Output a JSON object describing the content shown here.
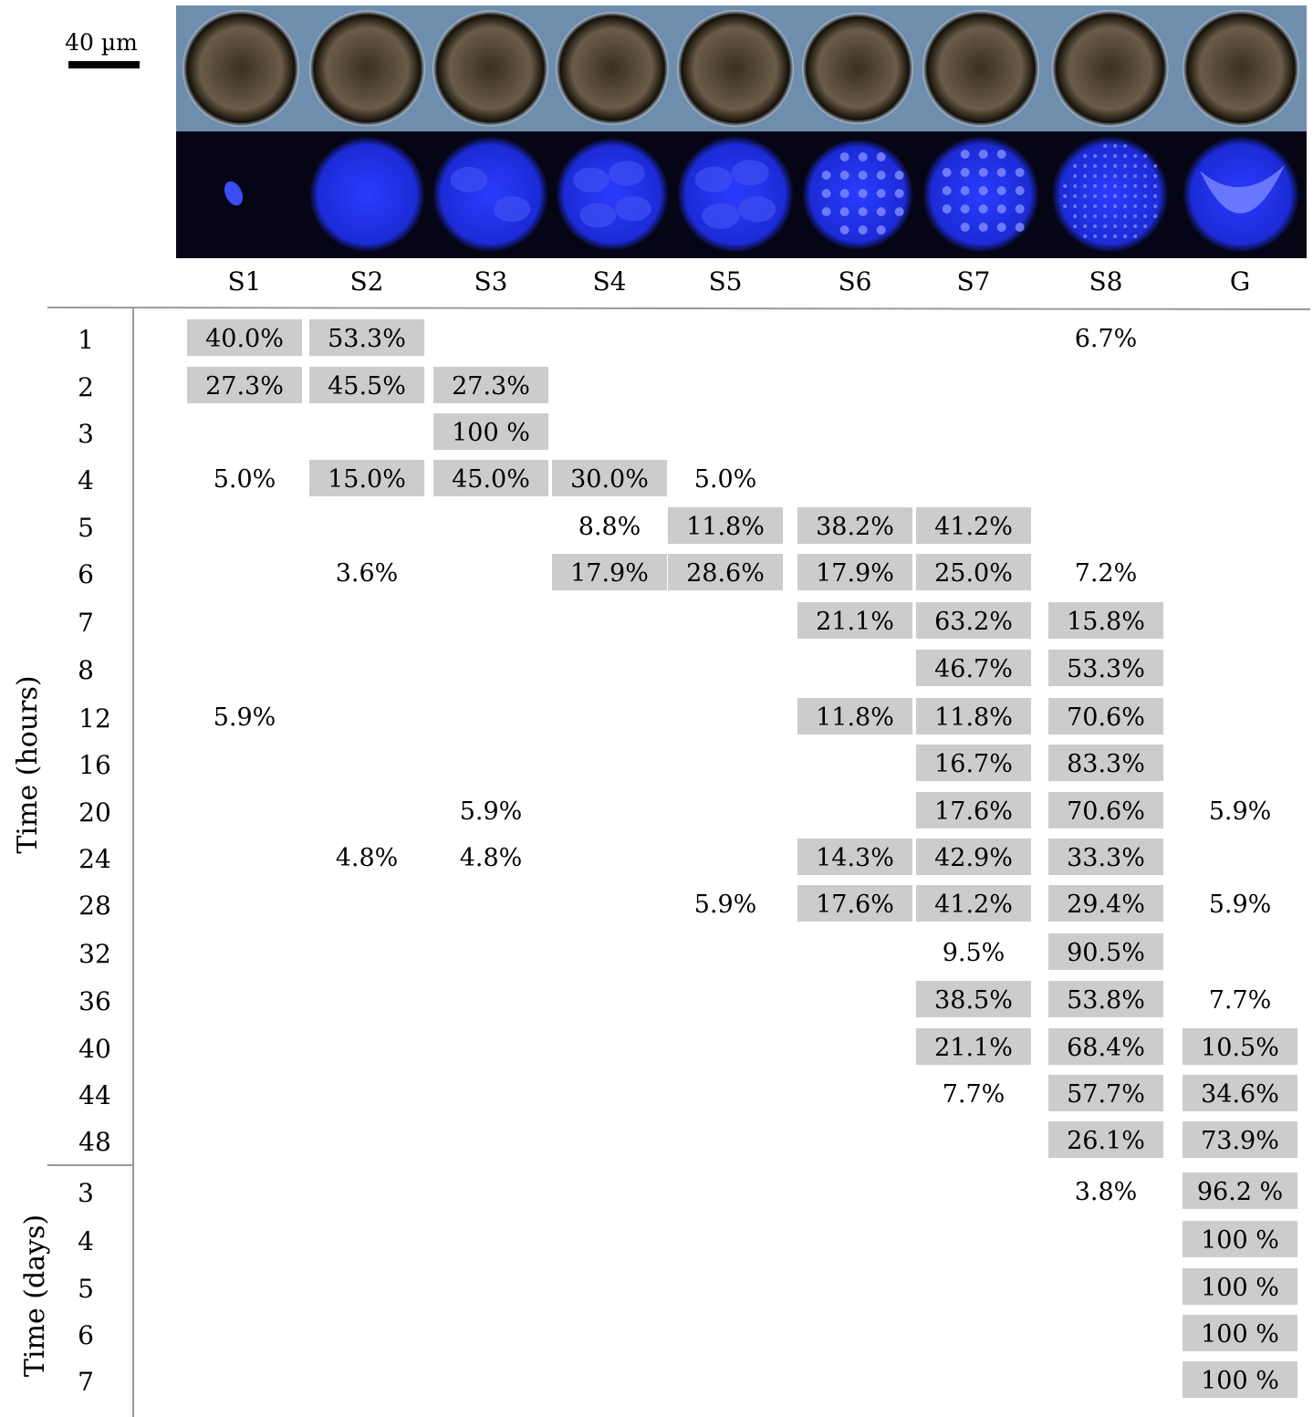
{
  "scale_bar": {
    "label": "40 µm"
  },
  "stage_images": [
    {
      "stage": "S1",
      "nuclei": "single"
    },
    {
      "stage": "S2",
      "nuclei": "diffuse"
    },
    {
      "stage": "S3",
      "nuclei": "few-large"
    },
    {
      "stage": "S4",
      "nuclei": "few-large"
    },
    {
      "stage": "S5",
      "nuclei": "few-large"
    },
    {
      "stage": "S6",
      "nuclei": "spots"
    },
    {
      "stage": "S7",
      "nuclei": "spots"
    },
    {
      "stage": "S8",
      "nuclei": "fine-spots"
    },
    {
      "stage": "G",
      "nuclei": "crescent"
    }
  ],
  "colors": {
    "cell_bright": "#6f8eae",
    "cell_dark": "#2e2820",
    "fluor_bg": "#050515",
    "fluor_cell": "#1c2bd6",
    "fluor_nuclei": "#5d6cff",
    "cell_highlight": "#b0c4db",
    "cell_mid": "#6a5c48",
    "cell_line": "#141008",
    "fluor_glow": "#2a3cff",
    "fluor_light": "#3b4cf0",
    "fluor_spot": "#7a88ff",
    "cell_core": "#3a3020",
    "box_fill": "#cccccc",
    "rule": "#999999"
  },
  "chart_data": {
    "type": "table",
    "columns": [
      "S1",
      "S2",
      "S3",
      "S4",
      "S5",
      "S6",
      "S7",
      "S8",
      "G"
    ],
    "groups": [
      {
        "label": "Time (hours)",
        "rows": [
          "1",
          "2",
          "3",
          "4",
          "5",
          "6",
          "7",
          "8",
          "12",
          "16",
          "20",
          "24",
          "28",
          "32",
          "36",
          "40",
          "44",
          "48"
        ]
      },
      {
        "label": "Time (days)",
        "rows": [
          "3",
          "4",
          "5",
          "6",
          "7"
        ]
      }
    ],
    "cells": [
      {
        "group": 0,
        "row": 0,
        "col": 0,
        "value": "40.0%",
        "boxed": true
      },
      {
        "group": 0,
        "row": 0,
        "col": 1,
        "value": "53.3%",
        "boxed": true
      },
      {
        "group": 0,
        "row": 0,
        "col": 7,
        "value": "6.7%",
        "boxed": false
      },
      {
        "group": 0,
        "row": 1,
        "col": 0,
        "value": "27.3%",
        "boxed": true
      },
      {
        "group": 0,
        "row": 1,
        "col": 1,
        "value": "45.5%",
        "boxed": true
      },
      {
        "group": 0,
        "row": 1,
        "col": 2,
        "value": "27.3%",
        "boxed": true
      },
      {
        "group": 0,
        "row": 2,
        "col": 2,
        "value": "100 %",
        "boxed": true
      },
      {
        "group": 0,
        "row": 3,
        "col": 0,
        "value": "5.0%",
        "boxed": false
      },
      {
        "group": 0,
        "row": 3,
        "col": 1,
        "value": "15.0%",
        "boxed": true
      },
      {
        "group": 0,
        "row": 3,
        "col": 2,
        "value": "45.0%",
        "boxed": true
      },
      {
        "group": 0,
        "row": 3,
        "col": 3,
        "value": "30.0%",
        "boxed": true
      },
      {
        "group": 0,
        "row": 3,
        "col": 4,
        "value": "5.0%",
        "boxed": false
      },
      {
        "group": 0,
        "row": 4,
        "col": 3,
        "value": "8.8%",
        "boxed": false
      },
      {
        "group": 0,
        "row": 4,
        "col": 4,
        "value": "11.8%",
        "boxed": true
      },
      {
        "group": 0,
        "row": 4,
        "col": 5,
        "value": "38.2%",
        "boxed": true
      },
      {
        "group": 0,
        "row": 4,
        "col": 6,
        "value": "41.2%",
        "boxed": true
      },
      {
        "group": 0,
        "row": 5,
        "col": 1,
        "value": "3.6%",
        "boxed": false
      },
      {
        "group": 0,
        "row": 5,
        "col": 3,
        "value": "17.9%",
        "boxed": true
      },
      {
        "group": 0,
        "row": 5,
        "col": 4,
        "value": "28.6%",
        "boxed": true
      },
      {
        "group": 0,
        "row": 5,
        "col": 5,
        "value": "17.9%",
        "boxed": true
      },
      {
        "group": 0,
        "row": 5,
        "col": 6,
        "value": "25.0%",
        "boxed": true
      },
      {
        "group": 0,
        "row": 5,
        "col": 7,
        "value": "7.2%",
        "boxed": false
      },
      {
        "group": 0,
        "row": 6,
        "col": 5,
        "value": "21.1%",
        "boxed": true
      },
      {
        "group": 0,
        "row": 6,
        "col": 6,
        "value": "63.2%",
        "boxed": true
      },
      {
        "group": 0,
        "row": 6,
        "col": 7,
        "value": "15.8%",
        "boxed": true
      },
      {
        "group": 0,
        "row": 7,
        "col": 6,
        "value": "46.7%",
        "boxed": true
      },
      {
        "group": 0,
        "row": 7,
        "col": 7,
        "value": "53.3%",
        "boxed": true
      },
      {
        "group": 0,
        "row": 8,
        "col": 0,
        "value": "5.9%",
        "boxed": false
      },
      {
        "group": 0,
        "row": 8,
        "col": 5,
        "value": "11.8%",
        "boxed": true
      },
      {
        "group": 0,
        "row": 8,
        "col": 6,
        "value": "11.8%",
        "boxed": true
      },
      {
        "group": 0,
        "row": 8,
        "col": 7,
        "value": "70.6%",
        "boxed": true
      },
      {
        "group": 0,
        "row": 9,
        "col": 6,
        "value": "16.7%",
        "boxed": true
      },
      {
        "group": 0,
        "row": 9,
        "col": 7,
        "value": "83.3%",
        "boxed": true
      },
      {
        "group": 0,
        "row": 10,
        "col": 2,
        "value": "5.9%",
        "boxed": false
      },
      {
        "group": 0,
        "row": 10,
        "col": 6,
        "value": "17.6%",
        "boxed": true
      },
      {
        "group": 0,
        "row": 10,
        "col": 7,
        "value": "70.6%",
        "boxed": true
      },
      {
        "group": 0,
        "row": 10,
        "col": 8,
        "value": "5.9%",
        "boxed": false
      },
      {
        "group": 0,
        "row": 11,
        "col": 1,
        "value": "4.8%",
        "boxed": false
      },
      {
        "group": 0,
        "row": 11,
        "col": 2,
        "value": "4.8%",
        "boxed": false
      },
      {
        "group": 0,
        "row": 11,
        "col": 5,
        "value": "14.3%",
        "boxed": true
      },
      {
        "group": 0,
        "row": 11,
        "col": 6,
        "value": "42.9%",
        "boxed": true
      },
      {
        "group": 0,
        "row": 11,
        "col": 7,
        "value": "33.3%",
        "boxed": true
      },
      {
        "group": 0,
        "row": 12,
        "col": 4,
        "value": "5.9%",
        "boxed": false
      },
      {
        "group": 0,
        "row": 12,
        "col": 5,
        "value": "17.6%",
        "boxed": true
      },
      {
        "group": 0,
        "row": 12,
        "col": 6,
        "value": "41.2%",
        "boxed": true
      },
      {
        "group": 0,
        "row": 12,
        "col": 7,
        "value": "29.4%",
        "boxed": true
      },
      {
        "group": 0,
        "row": 12,
        "col": 8,
        "value": "5.9%",
        "boxed": false
      },
      {
        "group": 0,
        "row": 13,
        "col": 6,
        "value": "9.5%",
        "boxed": false
      },
      {
        "group": 0,
        "row": 13,
        "col": 7,
        "value": "90.5%",
        "boxed": true
      },
      {
        "group": 0,
        "row": 14,
        "col": 6,
        "value": "38.5%",
        "boxed": true
      },
      {
        "group": 0,
        "row": 14,
        "col": 7,
        "value": "53.8%",
        "boxed": true
      },
      {
        "group": 0,
        "row": 14,
        "col": 8,
        "value": "7.7%",
        "boxed": false
      },
      {
        "group": 0,
        "row": 15,
        "col": 6,
        "value": "21.1%",
        "boxed": true
      },
      {
        "group": 0,
        "row": 15,
        "col": 7,
        "value": "68.4%",
        "boxed": true
      },
      {
        "group": 0,
        "row": 15,
        "col": 8,
        "value": "10.5%",
        "boxed": true
      },
      {
        "group": 0,
        "row": 16,
        "col": 6,
        "value": "7.7%",
        "boxed": false
      },
      {
        "group": 0,
        "row": 16,
        "col": 7,
        "value": "57.7%",
        "boxed": true
      },
      {
        "group": 0,
        "row": 16,
        "col": 8,
        "value": "34.6%",
        "boxed": true
      },
      {
        "group": 0,
        "row": 17,
        "col": 7,
        "value": "26.1%",
        "boxed": true
      },
      {
        "group": 0,
        "row": 17,
        "col": 8,
        "value": "73.9%",
        "boxed": true
      },
      {
        "group": 1,
        "row": 0,
        "col": 7,
        "value": "3.8%",
        "boxed": false
      },
      {
        "group": 1,
        "row": 0,
        "col": 8,
        "value": "96.2 %",
        "boxed": true
      },
      {
        "group": 1,
        "row": 1,
        "col": 8,
        "value": "100 %",
        "boxed": true
      },
      {
        "group": 1,
        "row": 2,
        "col": 8,
        "value": "100 %",
        "boxed": true
      },
      {
        "group": 1,
        "row": 3,
        "col": 8,
        "value": "100 %",
        "boxed": true
      },
      {
        "group": 1,
        "row": 4,
        "col": 8,
        "value": "100 %",
        "boxed": true
      }
    ]
  }
}
